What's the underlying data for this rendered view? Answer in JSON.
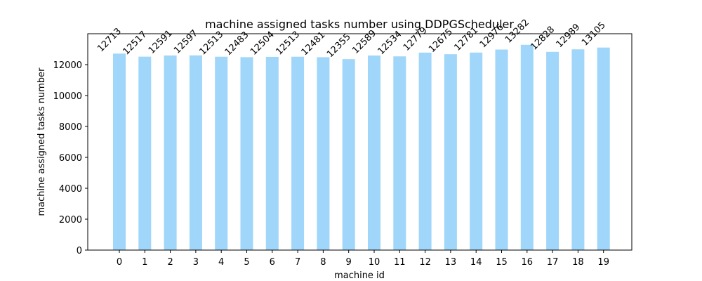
{
  "chart_data": {
    "type": "bar",
    "title": "machine assigned tasks number using DDPGScheduler",
    "xlabel": "machine id",
    "ylabel": "machine assigned tasks number",
    "categories": [
      "0",
      "1",
      "2",
      "3",
      "4",
      "5",
      "6",
      "7",
      "8",
      "9",
      "10",
      "11",
      "12",
      "13",
      "14",
      "15",
      "16",
      "17",
      "18",
      "19"
    ],
    "values": [
      12713,
      12517,
      12591,
      12597,
      12513,
      12483,
      12504,
      12513,
      12481,
      12355,
      12589,
      12534,
      12779,
      12675,
      12781,
      12976,
      13282,
      12828,
      12989,
      13105
    ],
    "data_labels": [
      "12713",
      "12517",
      "12591",
      "12597",
      "12513",
      "12483",
      "12504",
      "12513",
      "12481",
      "12355",
      "12589",
      "12534",
      "12779",
      "12675",
      "12781",
      "12976",
      "13282",
      "12828",
      "12989",
      "13105"
    ],
    "ylim": [
      0,
      14000
    ],
    "yticks": [
      0,
      2000,
      4000,
      6000,
      8000,
      10000,
      12000
    ],
    "ytick_labels": [
      "0",
      "2000",
      "4000",
      "6000",
      "8000",
      "10000",
      "12000"
    ],
    "bar_color": "#9fd6f9",
    "grid": false,
    "legend": "none"
  }
}
